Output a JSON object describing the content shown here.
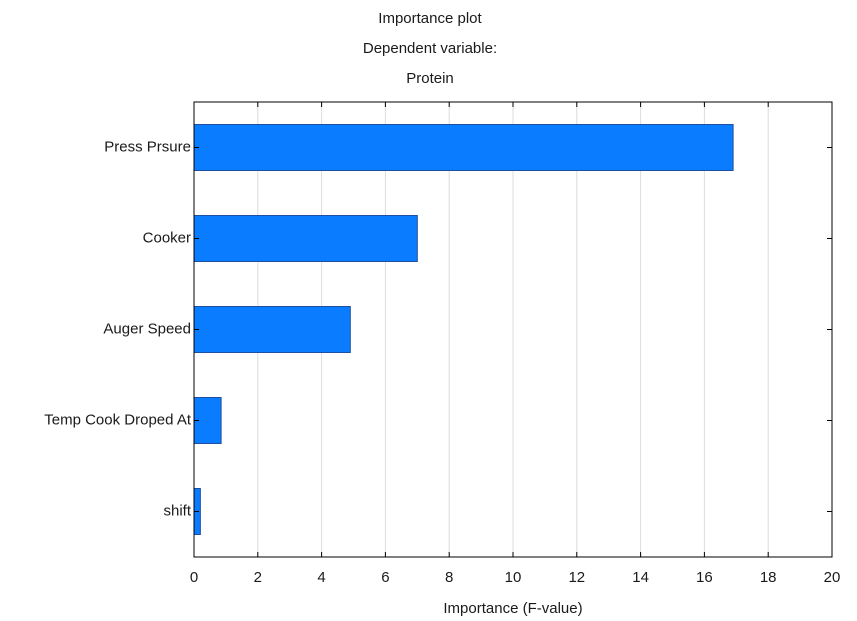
{
  "chart_data": {
    "type": "bar",
    "orientation": "horizontal",
    "title_lines": [
      "Importance plot",
      "Dependent variable:",
      "Protein"
    ],
    "xlabel": "Importance (F-value)",
    "ylabel": "",
    "categories": [
      "Press Prsure",
      "Cooker",
      "Auger Speed",
      "Temp Cook Droped At",
      "shift"
    ],
    "values": [
      16.9,
      7.0,
      4.9,
      0.85,
      0.2
    ],
    "xlim": [
      0,
      20
    ],
    "xticks": [
      "0",
      "2",
      "4",
      "6",
      "8",
      "10",
      "12",
      "14",
      "16",
      "18",
      "20"
    ],
    "grid": "vertical",
    "bar_color": "#0a7cff"
  }
}
